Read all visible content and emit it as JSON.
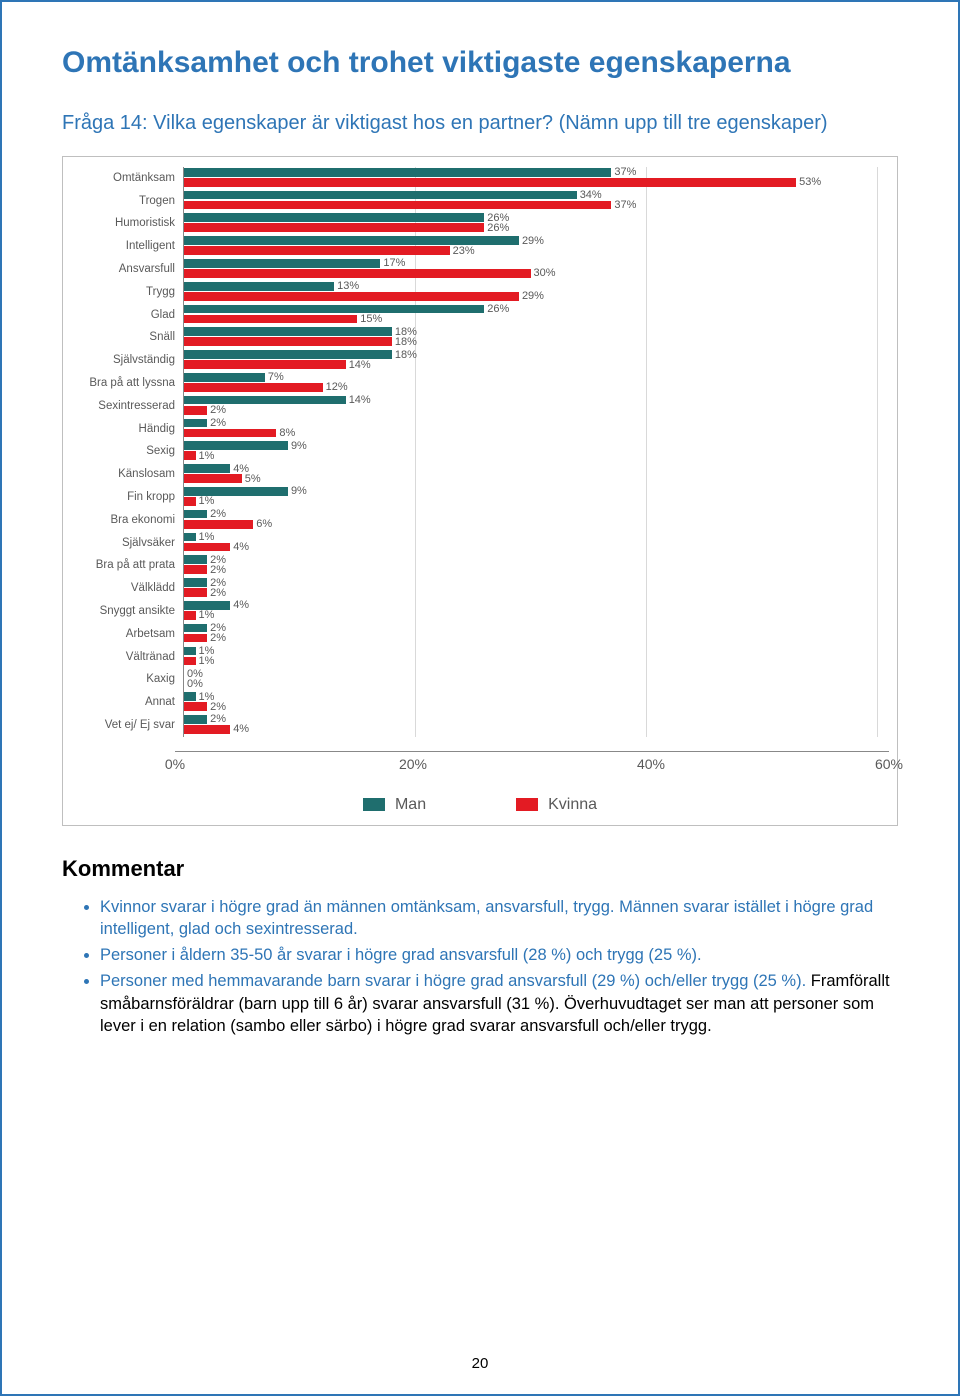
{
  "title": "Omtänksamhet och trohet viktigaste egenskaperna",
  "subtitle": "Fråga 14: Vilka egenskaper är viktigast hos en partner? (Nämn upp till tre egenskaper)",
  "chart": {
    "type": "bar",
    "orientation": "horizontal",
    "x_max": 60,
    "x_ticks": [
      0,
      20,
      40,
      60
    ],
    "x_tick_labels": [
      "0%",
      "20%",
      "40%",
      "60%"
    ],
    "grid_color": "#d9d9d9",
    "axis_color": "#888888",
    "frame_border_color": "#bfbfbf",
    "background_color": "#ffffff",
    "label_color": "#595959",
    "label_fontsize": 11.5,
    "bar_label_fontsize": 11,
    "series": [
      {
        "name": "Man",
        "color": "#1f6e6e"
      },
      {
        "name": "Kvinna",
        "color": "#e31b23"
      }
    ],
    "categories": [
      {
        "label": "Omtänksam",
        "man": 37,
        "kvinna": 53,
        "man_lbl": "37%",
        "kvinna_lbl": "53%"
      },
      {
        "label": "Trogen",
        "man": 34,
        "kvinna": 37,
        "man_lbl": "34%",
        "kvinna_lbl": "37%"
      },
      {
        "label": "Humoristisk",
        "man": 26,
        "kvinna": 26,
        "man_lbl": "26%",
        "kvinna_lbl": "26%"
      },
      {
        "label": "Intelligent",
        "man": 29,
        "kvinna": 23,
        "man_lbl": "29%",
        "kvinna_lbl": "23%"
      },
      {
        "label": "Ansvarsfull",
        "man": 17,
        "kvinna": 30,
        "man_lbl": "17%",
        "kvinna_lbl": "30%"
      },
      {
        "label": "Trygg",
        "man": 13,
        "kvinna": 29,
        "man_lbl": "13%",
        "kvinna_lbl": "29%"
      },
      {
        "label": "Glad",
        "man": 26,
        "kvinna": 15,
        "man_lbl": "26%",
        "kvinna_lbl": "15%"
      },
      {
        "label": "Snäll",
        "man": 18,
        "kvinna": 18,
        "man_lbl": "18%",
        "kvinna_lbl": "18%"
      },
      {
        "label": "Självständig",
        "man": 18,
        "kvinna": 14,
        "man_lbl": "18%",
        "kvinna_lbl": "14%"
      },
      {
        "label": "Bra på att lyssna",
        "man": 7,
        "kvinna": 12,
        "man_lbl": "7%",
        "kvinna_lbl": "12%"
      },
      {
        "label": "Sexintresserad",
        "man": 14,
        "kvinna": 2,
        "man_lbl": "14%",
        "kvinna_lbl": "2%"
      },
      {
        "label": "Händig",
        "man": 2,
        "kvinna": 8,
        "man_lbl": "2%",
        "kvinna_lbl": "8%"
      },
      {
        "label": "Sexig",
        "man": 9,
        "kvinna": 1,
        "man_lbl": "9%",
        "kvinna_lbl": "1%"
      },
      {
        "label": "Känslosam",
        "man": 4,
        "kvinna": 5,
        "man_lbl": "4%",
        "kvinna_lbl": "5%"
      },
      {
        "label": "Fin kropp",
        "man": 9,
        "kvinna": 1,
        "man_lbl": "9%",
        "kvinna_lbl": "1%"
      },
      {
        "label": "Bra ekonomi",
        "man": 2,
        "kvinna": 6,
        "man_lbl": "2%",
        "kvinna_lbl": "6%"
      },
      {
        "label": "Självsäker",
        "man": 1,
        "kvinna": 4,
        "man_lbl": "1%",
        "kvinna_lbl": "4%"
      },
      {
        "label": "Bra på att prata",
        "man": 2,
        "kvinna": 2,
        "man_lbl": "2%",
        "kvinna_lbl": "2%"
      },
      {
        "label": "Välklädd",
        "man": 2,
        "kvinna": 2,
        "man_lbl": "2%",
        "kvinna_lbl": "2%"
      },
      {
        "label": "Snyggt ansikte",
        "man": 4,
        "kvinna": 1,
        "man_lbl": "4%",
        "kvinna_lbl": "1%"
      },
      {
        "label": "Arbetsam",
        "man": 2,
        "kvinna": 2,
        "man_lbl": "2%",
        "kvinna_lbl": "2%"
      },
      {
        "label": "Vältränad",
        "man": 1,
        "kvinna": 1,
        "man_lbl": "1%",
        "kvinna_lbl": "1%"
      },
      {
        "label": "Kaxig",
        "man": 0,
        "kvinna": 0,
        "man_lbl": "0%",
        "kvinna_lbl": "0%"
      },
      {
        "label": "Annat",
        "man": 1,
        "kvinna": 2,
        "man_lbl": "1%",
        "kvinna_lbl": "2%"
      },
      {
        "label": "Vet ej/ Ej svar",
        "man": 2,
        "kvinna": 4,
        "man_lbl": "2%",
        "kvinna_lbl": "4%"
      }
    ],
    "legend": {
      "man": "Man",
      "kvinna": "Kvinna"
    }
  },
  "comment_heading": "Kommentar",
  "comments": [
    {
      "text_blue": "Kvinnor svarar i högre grad än männen omtänksam, ansvarsfull, trygg. Männen svarar istället i högre grad intelligent, glad och sexintresserad."
    },
    {
      "text_blue": "Personer i åldern 35-50 år svarar i högre grad ansvarsfull (28 %) och trygg (25 %)."
    },
    {
      "text_blue": "Personer med hemmavarande barn svarar i högre grad ansvarsfull (29 %) och/eller trygg (25 %). ",
      "text_black": "Framförallt småbarnsföräldrar (barn upp till 6 år) svarar ansvarsfull (31 %). Överhuvudtaget ser man att personer som lever i en relation (sambo eller särbo) i högre grad svarar ansvarsfull och/eller trygg."
    }
  ],
  "page_number": "20",
  "colors": {
    "accent": "#2e75b6",
    "title_color": "#2e75b6",
    "body_text": "#000000",
    "page_border": "#2e75b6"
  }
}
